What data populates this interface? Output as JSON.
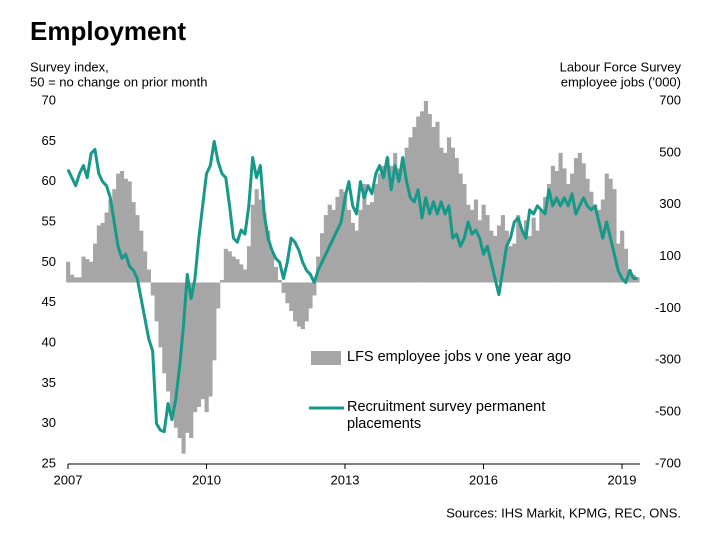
{
  "chart_data": {
    "type": "bar_line",
    "title": "Employment",
    "y_label": [
      "Survey index,",
      "50 = no change on prior month"
    ],
    "y2_label": [
      "Labour Force Survey",
      "employee jobs  ('000)"
    ],
    "source": "Sources: IHS Markit, KPMG, REC, ONS.",
    "ylim": [
      25,
      70
    ],
    "yticks": [
      70,
      65,
      60,
      55,
      50,
      45,
      40,
      35,
      30,
      25
    ],
    "y2lim": [
      -700,
      700
    ],
    "y2ticks": [
      700,
      500,
      300,
      100,
      -100,
      -300,
      -500,
      -700
    ],
    "categories": [
      "2007",
      null,
      null,
      null,
      null,
      null,
      null,
      null,
      null,
      null,
      null,
      null,
      null,
      null,
      null,
      null,
      null,
      null,
      null,
      null,
      null,
      null,
      null,
      null,
      null,
      null,
      null,
      null,
      null,
      null,
      null,
      null,
      null,
      null,
      null,
      null,
      "2010",
      null,
      null,
      null,
      null,
      null,
      null,
      null,
      null,
      null,
      null,
      null,
      null,
      null,
      null,
      null,
      null,
      null,
      null,
      null,
      null,
      null,
      null,
      null,
      null,
      null,
      null,
      null,
      null,
      null,
      null,
      null,
      null,
      null,
      null,
      null,
      "2013",
      null,
      null,
      null,
      null,
      null,
      null,
      null,
      null,
      null,
      null,
      null,
      null,
      null,
      null,
      null,
      null,
      null,
      null,
      null,
      null,
      null,
      null,
      null,
      null,
      null,
      null,
      null,
      null,
      null,
      null,
      null,
      null,
      null,
      null,
      null,
      "2016",
      null,
      null,
      null,
      null,
      null,
      null,
      null,
      null,
      null,
      null,
      null,
      null,
      null,
      null,
      null,
      null,
      null,
      null,
      null,
      null,
      null,
      null,
      null,
      null,
      null,
      null,
      null,
      null,
      null,
      null,
      null,
      null,
      null,
      null,
      null,
      "2019",
      null,
      null,
      null,
      null
    ],
    "series": [
      {
        "name": "LFS employee jobs v one year ago",
        "type": "bar",
        "axis": "y2",
        "color": "#a6a6a6",
        "values": [
          80,
          30,
          20,
          20,
          100,
          90,
          80,
          150,
          220,
          230,
          270,
          320,
          360,
          420,
          430,
          400,
          390,
          310,
          260,
          200,
          120,
          50,
          -50,
          -150,
          -250,
          -350,
          -420,
          -500,
          -560,
          -600,
          -660,
          -580,
          -600,
          -500,
          -480,
          -450,
          -500,
          -440,
          -300,
          -100,
          10,
          130,
          120,
          100,
          90,
          70,
          50,
          140,
          300,
          360,
          320,
          270,
          200,
          120,
          60,
          10,
          -40,
          -80,
          -110,
          -150,
          -170,
          -180,
          -150,
          -100,
          -50,
          100,
          190,
          260,
          300,
          280,
          330,
          360,
          350,
          280,
          230,
          200,
          280,
          380,
          300,
          310,
          380,
          420,
          450,
          480,
          450,
          500,
          440,
          480,
          520,
          560,
          600,
          640,
          660,
          700,
          650,
          600,
          620,
          520,
          500,
          560,
          520,
          480,
          420,
          380,
          300,
          280,
          320,
          240,
          300,
          260,
          200,
          180,
          220,
          260,
          200,
          140,
          150,
          260,
          200,
          240,
          180,
          250,
          200,
          280,
          330,
          380,
          450,
          430,
          500,
          440,
          380,
          420,
          480,
          500,
          460,
          400,
          350,
          300,
          280,
          320,
          420,
          400,
          360,
          150,
          200,
          130,
          50,
          30,
          20
        ]
      },
      {
        "name": "Recruitment survey permanent placements",
        "type": "line",
        "axis": "y",
        "color": "#17998a",
        "values": [
          61.5,
          60.5,
          59.5,
          61,
          62,
          60.5,
          63.5,
          64,
          61,
          60,
          59.5,
          58,
          55,
          52,
          50.5,
          51,
          49.5,
          49,
          48,
          45.5,
          43,
          40.5,
          39,
          30,
          29.2,
          29,
          32.5,
          30.5,
          33,
          37,
          42,
          48.5,
          45.5,
          48,
          53,
          57,
          61,
          62,
          65,
          62.5,
          61,
          60.5,
          57,
          53,
          52.5,
          54,
          53.5,
          57,
          63,
          60.5,
          62,
          56,
          53,
          51.5,
          50.5,
          50,
          48,
          50,
          53,
          52.5,
          51.5,
          50,
          49,
          48.5,
          47.5,
          49,
          50,
          51,
          52,
          53,
          54,
          55,
          58,
          60,
          57,
          56,
          60,
          58,
          59.5,
          58.5,
          61,
          62,
          60.5,
          63,
          59,
          62,
          60,
          63,
          60,
          58,
          57.5,
          59,
          55.5,
          58,
          56,
          57.5,
          56,
          57.5,
          56,
          57,
          53,
          53.5,
          52,
          53,
          55,
          53.5,
          54,
          53,
          51,
          52,
          50,
          48,
          46,
          49,
          52,
          53,
          55,
          55.5,
          54,
          53,
          56.5,
          56,
          57,
          56.5,
          56,
          59,
          57,
          58,
          57,
          58,
          57,
          58.5,
          56,
          57,
          58,
          57,
          56.5,
          57,
          55,
          53,
          55,
          53,
          51,
          49,
          48,
          47.5,
          49,
          48,
          48
        ]
      }
    ]
  }
}
